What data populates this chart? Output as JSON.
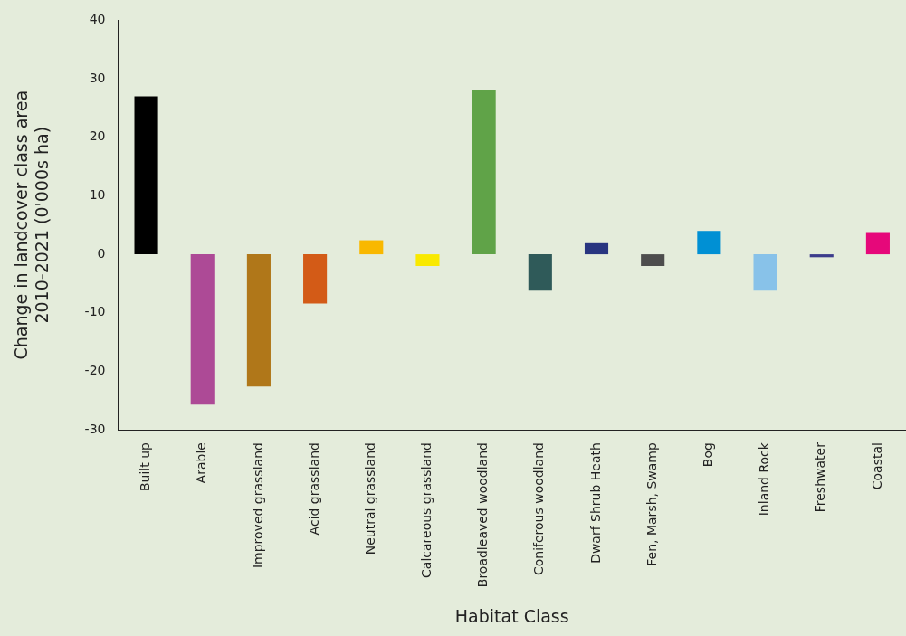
{
  "chart_data": {
    "type": "bar",
    "xlabel": "Habitat Class",
    "ylabel": "Change in landcover class area\n2010-2021 (0'000s ha)",
    "categories": [
      "Built up",
      "Arable",
      "Improved grassland",
      "Acid grassland",
      "Neutral grassland",
      "Calcareous grassland",
      "Broadleaved woodland",
      "Coniferous woodland",
      "Dwarf Shrub Heath",
      "Fen, Marsh, Swamp",
      "Bog",
      "Inland Rock",
      "Freshwater",
      "Coastal"
    ],
    "values": [
      27,
      -25.7,
      -22.6,
      -8.4,
      2.4,
      -2,
      28,
      -6.2,
      1.9,
      -2,
      4,
      -6.2,
      -0.5,
      3.8
    ],
    "colors": [
      "#000000",
      "#ad4a96",
      "#b07719",
      "#d35b17",
      "#f9b800",
      "#f9e900",
      "#60a348",
      "#2f5a59",
      "#283580",
      "#4d4d4d",
      "#0090d4",
      "#88c2e9",
      "#3c3c8c",
      "#e6087a"
    ],
    "ylim": [
      -30,
      40
    ],
    "yticks": [
      -30,
      -20,
      -10,
      0,
      10,
      20,
      30,
      40
    ],
    "grid": false,
    "legend": false
  }
}
